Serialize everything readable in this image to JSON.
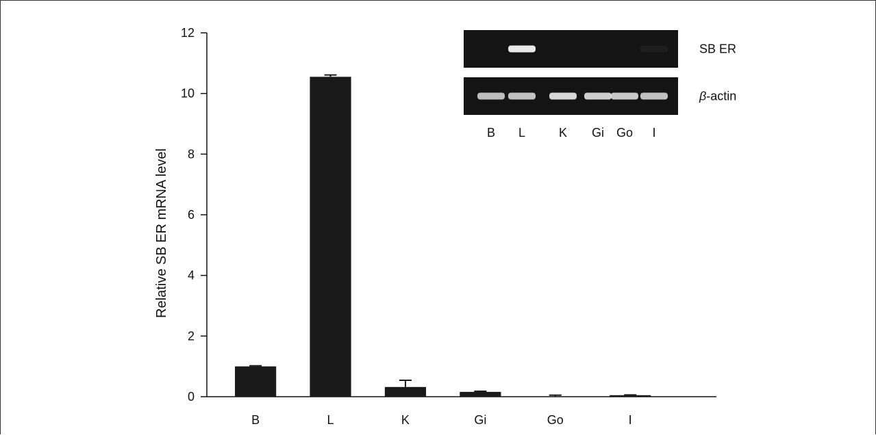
{
  "chart_data": {
    "type": "bar",
    "title": "",
    "xlabel": "",
    "ylabel": "Relative SB ER mRNA level",
    "ylim": [
      0,
      12
    ],
    "yticks": [
      0,
      2,
      4,
      6,
      8,
      10,
      12
    ],
    "grid": false,
    "categories": [
      "B",
      "L",
      "K",
      "Gi",
      "Go",
      "I"
    ],
    "values": [
      1.0,
      10.55,
      0.32,
      0.16,
      0.0,
      0.05
    ],
    "errors": [
      0.02,
      0.06,
      0.22,
      0.02,
      0.05,
      0.01
    ],
    "bar_color": "#1a1a1a"
  },
  "inset": {
    "rows": [
      {
        "label_prefix": "SB ER",
        "label_italic": "",
        "bands": [
          0.0,
          1.0,
          0.0,
          0.0,
          0.0,
          0.05
        ]
      },
      {
        "label_prefix": "-actin",
        "label_italic": "β",
        "bands": [
          0.8,
          0.82,
          0.92,
          0.88,
          0.85,
          0.82
        ]
      }
    ],
    "lanes": [
      "B",
      "L",
      "K",
      "Gi",
      "Go",
      "I"
    ],
    "gel_color": "#141414",
    "band_color": "#e8e8e8"
  }
}
